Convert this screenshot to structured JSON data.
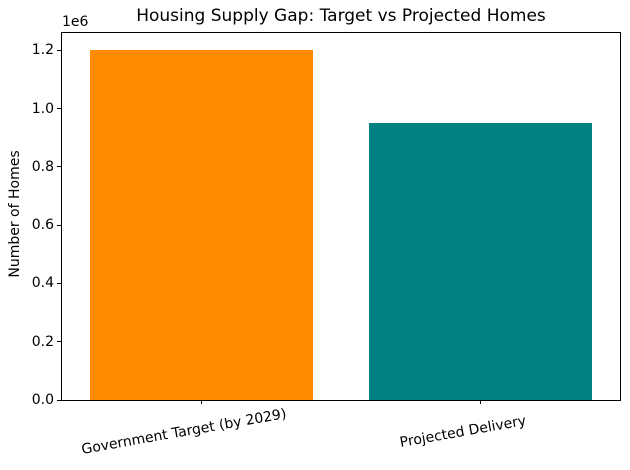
{
  "figure": {
    "background_color": "#ffffff",
    "text_color": "#000000"
  },
  "chart_data": {
    "type": "bar",
    "title": "Housing Supply Gap: Target vs Projected Homes",
    "xlabel": "",
    "ylabel": "Number of Homes",
    "categories": [
      "Government Target (by 2029)",
      "Projected Delivery"
    ],
    "values": [
      1200000,
      950000
    ],
    "bar_colors": [
      "#FF8C00",
      "#008080"
    ],
    "bar_width_fraction": 0.8,
    "ylim": [
      0,
      1260000
    ],
    "y_ticks": {
      "values": [
        0,
        200000,
        400000,
        600000,
        800000,
        1000000,
        1200000
      ],
      "labels": [
        "0.0",
        "0.2",
        "0.4",
        "0.6",
        "0.8",
        "1.0",
        "1.2"
      ],
      "offset_label": "1e6"
    },
    "x_tick_rotation_deg": 10,
    "grid": false,
    "legend": null
  }
}
